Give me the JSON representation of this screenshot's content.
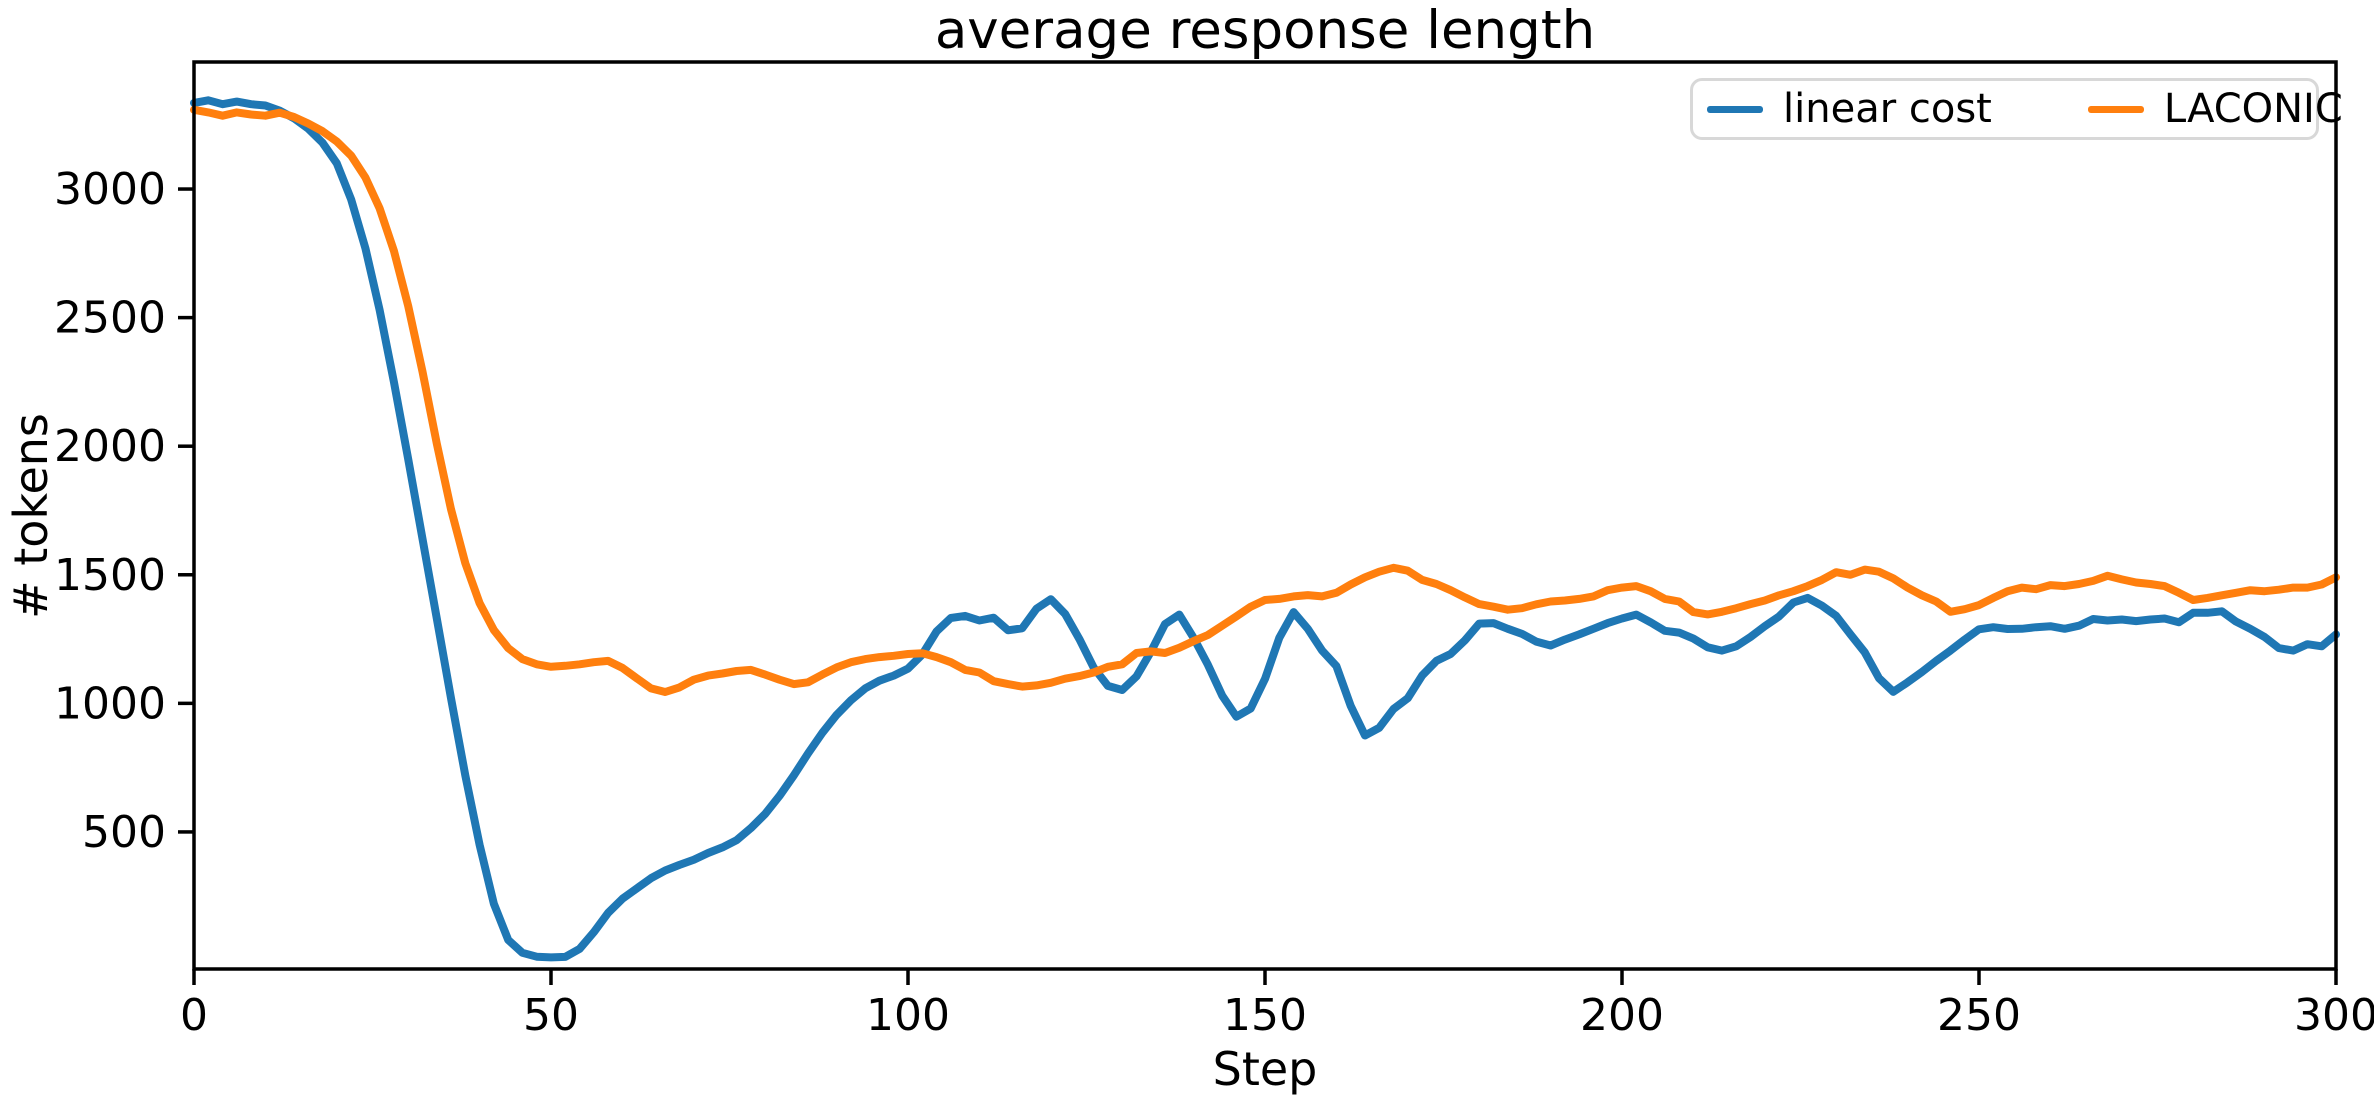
{
  "figure": {
    "background": "#ffffff",
    "spine_color": "#000000",
    "tick_color": "#000000",
    "text_color": "#000000"
  },
  "legend": {
    "border_color": "#d8d8d8",
    "items": [
      {
        "label": "linear cost",
        "color": "#1f77b4"
      },
      {
        "label": "LACONIC",
        "color": "#ff7f0e"
      }
    ]
  },
  "chart_data": {
    "type": "line",
    "title": "average response length",
    "xlabel": "Step",
    "ylabel": "# tokens",
    "xlim": [
      0,
      300
    ],
    "ylim": [
      -33,
      3494
    ],
    "x_ticks": [
      0,
      50,
      100,
      150,
      200,
      250,
      300
    ],
    "y_ticks": [
      500,
      1000,
      1500,
      2000,
      2500,
      3000
    ],
    "grid": false,
    "legend_position": "upper-right-horizontal",
    "line_width": 8,
    "series": [
      {
        "name": "linear cost",
        "color": "#1f77b4",
        "points": [
          [
            0,
            3335
          ],
          [
            2,
            3345
          ],
          [
            4,
            3330
          ],
          [
            6,
            3340
          ],
          [
            8,
            3330
          ],
          [
            10,
            3325
          ],
          [
            12,
            3305
          ],
          [
            14,
            3275
          ],
          [
            16,
            3235
          ],
          [
            18,
            3180
          ],
          [
            20,
            3100
          ],
          [
            22,
            2960
          ],
          [
            24,
            2770
          ],
          [
            26,
            2530
          ],
          [
            28,
            2250
          ],
          [
            30,
            1950
          ],
          [
            32,
            1640
          ],
          [
            34,
            1330
          ],
          [
            36,
            1020
          ],
          [
            38,
            720
          ],
          [
            40,
            450
          ],
          [
            42,
            220
          ],
          [
            44,
            80
          ],
          [
            46,
            30
          ],
          [
            48,
            15
          ],
          [
            50,
            12
          ],
          [
            52,
            14
          ],
          [
            54,
            45
          ],
          [
            56,
            110
          ],
          [
            58,
            185
          ],
          [
            60,
            240
          ],
          [
            62,
            280
          ],
          [
            64,
            320
          ],
          [
            66,
            350
          ],
          [
            68,
            372
          ],
          [
            70,
            392
          ],
          [
            72,
            418
          ],
          [
            74,
            440
          ],
          [
            76,
            468
          ],
          [
            78,
            515
          ],
          [
            80,
            570
          ],
          [
            82,
            640
          ],
          [
            84,
            720
          ],
          [
            86,
            805
          ],
          [
            88,
            885
          ],
          [
            90,
            955
          ],
          [
            92,
            1012
          ],
          [
            94,
            1058
          ],
          [
            96,
            1088
          ],
          [
            98,
            1108
          ],
          [
            100,
            1135
          ],
          [
            102,
            1190
          ],
          [
            104,
            1280
          ],
          [
            106,
            1332
          ],
          [
            108,
            1340
          ],
          [
            110,
            1322
          ],
          [
            112,
            1333
          ],
          [
            114,
            1284
          ],
          [
            116,
            1292
          ],
          [
            118,
            1368
          ],
          [
            120,
            1405
          ],
          [
            122,
            1348
          ],
          [
            124,
            1250
          ],
          [
            126,
            1140
          ],
          [
            128,
            1068
          ],
          [
            130,
            1052
          ],
          [
            132,
            1105
          ],
          [
            134,
            1200
          ],
          [
            136,
            1308
          ],
          [
            138,
            1345
          ],
          [
            140,
            1255
          ],
          [
            142,
            1150
          ],
          [
            144,
            1030
          ],
          [
            146,
            948
          ],
          [
            148,
            980
          ],
          [
            150,
            1095
          ],
          [
            152,
            1255
          ],
          [
            154,
            1355
          ],
          [
            156,
            1290
          ],
          [
            158,
            1205
          ],
          [
            160,
            1145
          ],
          [
            162,
            990
          ],
          [
            164,
            875
          ],
          [
            166,
            905
          ],
          [
            168,
            978
          ],
          [
            170,
            1020
          ],
          [
            172,
            1108
          ],
          [
            174,
            1165
          ],
          [
            176,
            1192
          ],
          [
            178,
            1245
          ],
          [
            180,
            1310
          ],
          [
            182,
            1312
          ],
          [
            184,
            1290
          ],
          [
            186,
            1270
          ],
          [
            188,
            1240
          ],
          [
            190,
            1225
          ],
          [
            192,
            1248
          ],
          [
            194,
            1268
          ],
          [
            196,
            1290
          ],
          [
            198,
            1312
          ],
          [
            200,
            1330
          ],
          [
            202,
            1345
          ],
          [
            204,
            1315
          ],
          [
            206,
            1282
          ],
          [
            208,
            1275
          ],
          [
            210,
            1252
          ],
          [
            212,
            1218
          ],
          [
            214,
            1205
          ],
          [
            216,
            1222
          ],
          [
            218,
            1258
          ],
          [
            220,
            1300
          ],
          [
            222,
            1338
          ],
          [
            224,
            1392
          ],
          [
            226,
            1410
          ],
          [
            228,
            1380
          ],
          [
            230,
            1340
          ],
          [
            232,
            1268
          ],
          [
            234,
            1198
          ],
          [
            236,
            1098
          ],
          [
            238,
            1045
          ],
          [
            240,
            1082
          ],
          [
            242,
            1122
          ],
          [
            244,
            1165
          ],
          [
            246,
            1205
          ],
          [
            248,
            1248
          ],
          [
            250,
            1288
          ],
          [
            252,
            1296
          ],
          [
            254,
            1289
          ],
          [
            256,
            1290
          ],
          [
            258,
            1296
          ],
          [
            260,
            1300
          ],
          [
            262,
            1290
          ],
          [
            264,
            1302
          ],
          [
            266,
            1328
          ],
          [
            268,
            1322
          ],
          [
            270,
            1326
          ],
          [
            272,
            1320
          ],
          [
            274,
            1326
          ],
          [
            276,
            1330
          ],
          [
            278,
            1315
          ],
          [
            280,
            1352
          ],
          [
            282,
            1352
          ],
          [
            284,
            1358
          ],
          [
            286,
            1318
          ],
          [
            288,
            1290
          ],
          [
            290,
            1258
          ],
          [
            292,
            1215
          ],
          [
            294,
            1205
          ],
          [
            296,
            1230
          ],
          [
            298,
            1222
          ],
          [
            300,
            1268
          ]
        ]
      },
      {
        "name": "LACONIC",
        "color": "#ff7f0e",
        "points": [
          [
            0,
            3308
          ],
          [
            2,
            3298
          ],
          [
            4,
            3285
          ],
          [
            6,
            3298
          ],
          [
            8,
            3290
          ],
          [
            10,
            3285
          ],
          [
            12,
            3297
          ],
          [
            14,
            3280
          ],
          [
            16,
            3255
          ],
          [
            18,
            3225
          ],
          [
            20,
            3185
          ],
          [
            22,
            3130
          ],
          [
            24,
            3045
          ],
          [
            26,
            2925
          ],
          [
            28,
            2760
          ],
          [
            30,
            2545
          ],
          [
            32,
            2290
          ],
          [
            34,
            2010
          ],
          [
            36,
            1755
          ],
          [
            38,
            1545
          ],
          [
            40,
            1390
          ],
          [
            42,
            1285
          ],
          [
            44,
            1215
          ],
          [
            46,
            1172
          ],
          [
            48,
            1152
          ],
          [
            50,
            1142
          ],
          [
            52,
            1146
          ],
          [
            54,
            1152
          ],
          [
            56,
            1160
          ],
          [
            58,
            1165
          ],
          [
            60,
            1138
          ],
          [
            62,
            1098
          ],
          [
            64,
            1058
          ],
          [
            66,
            1044
          ],
          [
            68,
            1062
          ],
          [
            70,
            1092
          ],
          [
            72,
            1108
          ],
          [
            74,
            1116
          ],
          [
            76,
            1126
          ],
          [
            78,
            1130
          ],
          [
            80,
            1112
          ],
          [
            82,
            1092
          ],
          [
            84,
            1075
          ],
          [
            86,
            1082
          ],
          [
            88,
            1112
          ],
          [
            90,
            1140
          ],
          [
            92,
            1160
          ],
          [
            94,
            1172
          ],
          [
            96,
            1180
          ],
          [
            98,
            1185
          ],
          [
            100,
            1192
          ],
          [
            102,
            1195
          ],
          [
            104,
            1180
          ],
          [
            106,
            1160
          ],
          [
            108,
            1130
          ],
          [
            110,
            1120
          ],
          [
            112,
            1086
          ],
          [
            114,
            1075
          ],
          [
            116,
            1065
          ],
          [
            118,
            1070
          ],
          [
            120,
            1080
          ],
          [
            122,
            1096
          ],
          [
            124,
            1106
          ],
          [
            126,
            1120
          ],
          [
            128,
            1142
          ],
          [
            130,
            1152
          ],
          [
            132,
            1196
          ],
          [
            134,
            1202
          ],
          [
            136,
            1196
          ],
          [
            138,
            1216
          ],
          [
            140,
            1242
          ],
          [
            142,
            1266
          ],
          [
            144,
            1302
          ],
          [
            146,
            1338
          ],
          [
            148,
            1376
          ],
          [
            150,
            1402
          ],
          [
            152,
            1406
          ],
          [
            154,
            1416
          ],
          [
            156,
            1421
          ],
          [
            158,
            1416
          ],
          [
            160,
            1430
          ],
          [
            162,
            1462
          ],
          [
            164,
            1490
          ],
          [
            166,
            1512
          ],
          [
            168,
            1527
          ],
          [
            170,
            1516
          ],
          [
            172,
            1480
          ],
          [
            174,
            1464
          ],
          [
            176,
            1440
          ],
          [
            178,
            1412
          ],
          [
            180,
            1386
          ],
          [
            182,
            1376
          ],
          [
            184,
            1364
          ],
          [
            186,
            1370
          ],
          [
            188,
            1385
          ],
          [
            190,
            1396
          ],
          [
            192,
            1400
          ],
          [
            194,
            1406
          ],
          [
            196,
            1416
          ],
          [
            198,
            1440
          ],
          [
            200,
            1450
          ],
          [
            202,
            1456
          ],
          [
            204,
            1436
          ],
          [
            206,
            1406
          ],
          [
            208,
            1396
          ],
          [
            210,
            1355
          ],
          [
            212,
            1346
          ],
          [
            214,
            1356
          ],
          [
            216,
            1370
          ],
          [
            218,
            1386
          ],
          [
            220,
            1400
          ],
          [
            222,
            1420
          ],
          [
            224,
            1436
          ],
          [
            226,
            1456
          ],
          [
            228,
            1480
          ],
          [
            230,
            1510
          ],
          [
            232,
            1500
          ],
          [
            234,
            1520
          ],
          [
            236,
            1512
          ],
          [
            238,
            1486
          ],
          [
            240,
            1450
          ],
          [
            242,
            1420
          ],
          [
            244,
            1396
          ],
          [
            246,
            1356
          ],
          [
            248,
            1366
          ],
          [
            250,
            1382
          ],
          [
            252,
            1410
          ],
          [
            254,
            1436
          ],
          [
            256,
            1450
          ],
          [
            258,
            1444
          ],
          [
            260,
            1460
          ],
          [
            262,
            1456
          ],
          [
            264,
            1464
          ],
          [
            266,
            1476
          ],
          [
            268,
            1496
          ],
          [
            270,
            1482
          ],
          [
            272,
            1470
          ],
          [
            274,
            1464
          ],
          [
            276,
            1456
          ],
          [
            278,
            1430
          ],
          [
            280,
            1402
          ],
          [
            282,
            1410
          ],
          [
            284,
            1420
          ],
          [
            286,
            1430
          ],
          [
            288,
            1440
          ],
          [
            290,
            1436
          ],
          [
            292,
            1442
          ],
          [
            294,
            1450
          ],
          [
            296,
            1450
          ],
          [
            298,
            1462
          ],
          [
            300,
            1490
          ]
        ]
      }
    ]
  }
}
